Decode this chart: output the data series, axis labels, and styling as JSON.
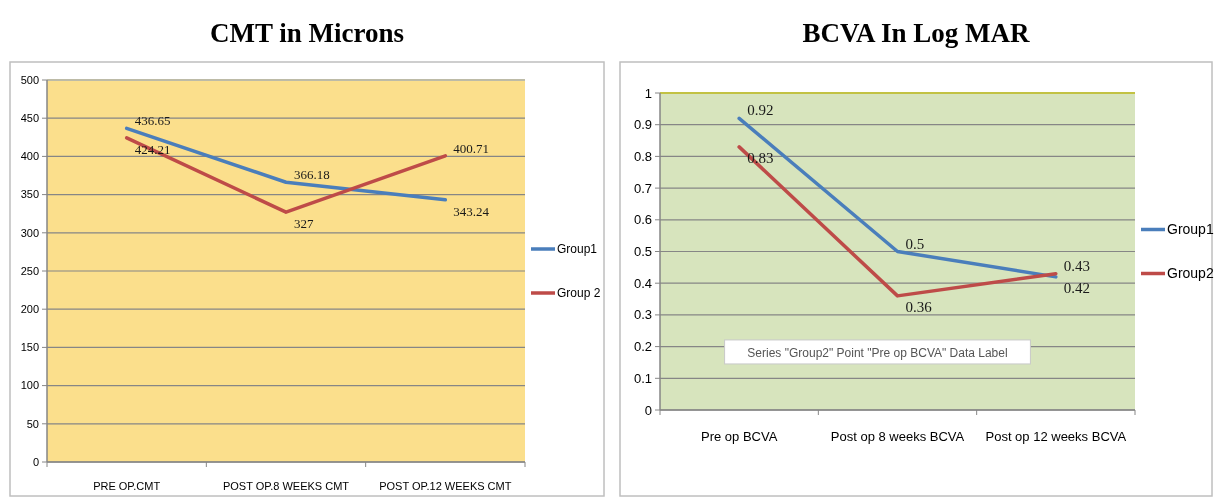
{
  "chart_data": [
    {
      "type": "line",
      "title": "CMT in Microns",
      "categories": [
        "PRE OP.CMT",
        "POST OP.8 WEEKS CMT",
        "POST OP.12 WEEKS CMT"
      ],
      "series": [
        {
          "name": "Group1",
          "color": "#4a7ebb",
          "values": [
            436.65,
            366.18,
            343.24
          ]
        },
        {
          "name": "Group 2",
          "color": "#be4b48",
          "values": [
            424.21,
            327,
            400.71
          ]
        }
      ],
      "ylim": [
        0,
        500
      ],
      "yticks": [
        0,
        50,
        100,
        150,
        200,
        250,
        300,
        350,
        400,
        450,
        500
      ],
      "grid": "y",
      "legend": "right",
      "data_labels": true
    },
    {
      "type": "line",
      "title": "BCVA In Log MAR",
      "categories": [
        "Pre op BCVA",
        "Post op 8 weeks BCVA",
        "Post op 12 weeks BCVA"
      ],
      "series": [
        {
          "name": "Group1",
          "color": "#4a7ebb",
          "values": [
            0.92,
            0.5,
            0.42
          ]
        },
        {
          "name": "Group2",
          "color": "#be4b48",
          "values": [
            0.83,
            0.36,
            0.43
          ]
        }
      ],
      "ylim": [
        0,
        1
      ],
      "yticks": [
        0,
        0.1,
        0.2,
        0.3,
        0.4,
        0.5,
        0.6,
        0.7,
        0.8,
        0.9,
        1
      ],
      "grid": "y",
      "legend": "right",
      "data_labels": true,
      "annotations": [
        "Series \"Group2\" Point \"Pre op BCVA\" Data Label"
      ]
    }
  ]
}
